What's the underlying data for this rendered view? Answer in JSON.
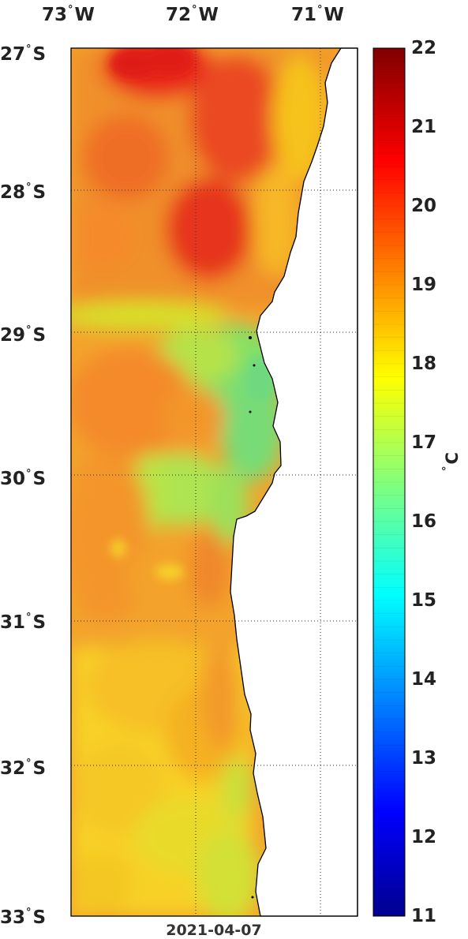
{
  "map": {
    "date": "2021-04-07",
    "unit": "C",
    "lon_labels": [
      {
        "deg": "73",
        "hem": "W"
      },
      {
        "deg": "72",
        "hem": "W"
      },
      {
        "deg": "71",
        "hem": "W"
      }
    ],
    "lat_labels": [
      {
        "deg": "27",
        "hem": "S"
      },
      {
        "deg": "28",
        "hem": "S"
      },
      {
        "deg": "29",
        "hem": "S"
      },
      {
        "deg": "30",
        "hem": "S"
      },
      {
        "deg": "31",
        "hem": "S"
      },
      {
        "deg": "32",
        "hem": "S"
      },
      {
        "deg": "33",
        "hem": "S"
      }
    ],
    "colorbar": {
      "min": 11,
      "max": 22,
      "ticks": [
        "22",
        "21",
        "20",
        "19",
        "18",
        "17",
        "16",
        "15",
        "14",
        "13",
        "12",
        "11"
      ],
      "colormap": "jet"
    },
    "land_color": "#ffffff",
    "grid": "dotted"
  }
}
